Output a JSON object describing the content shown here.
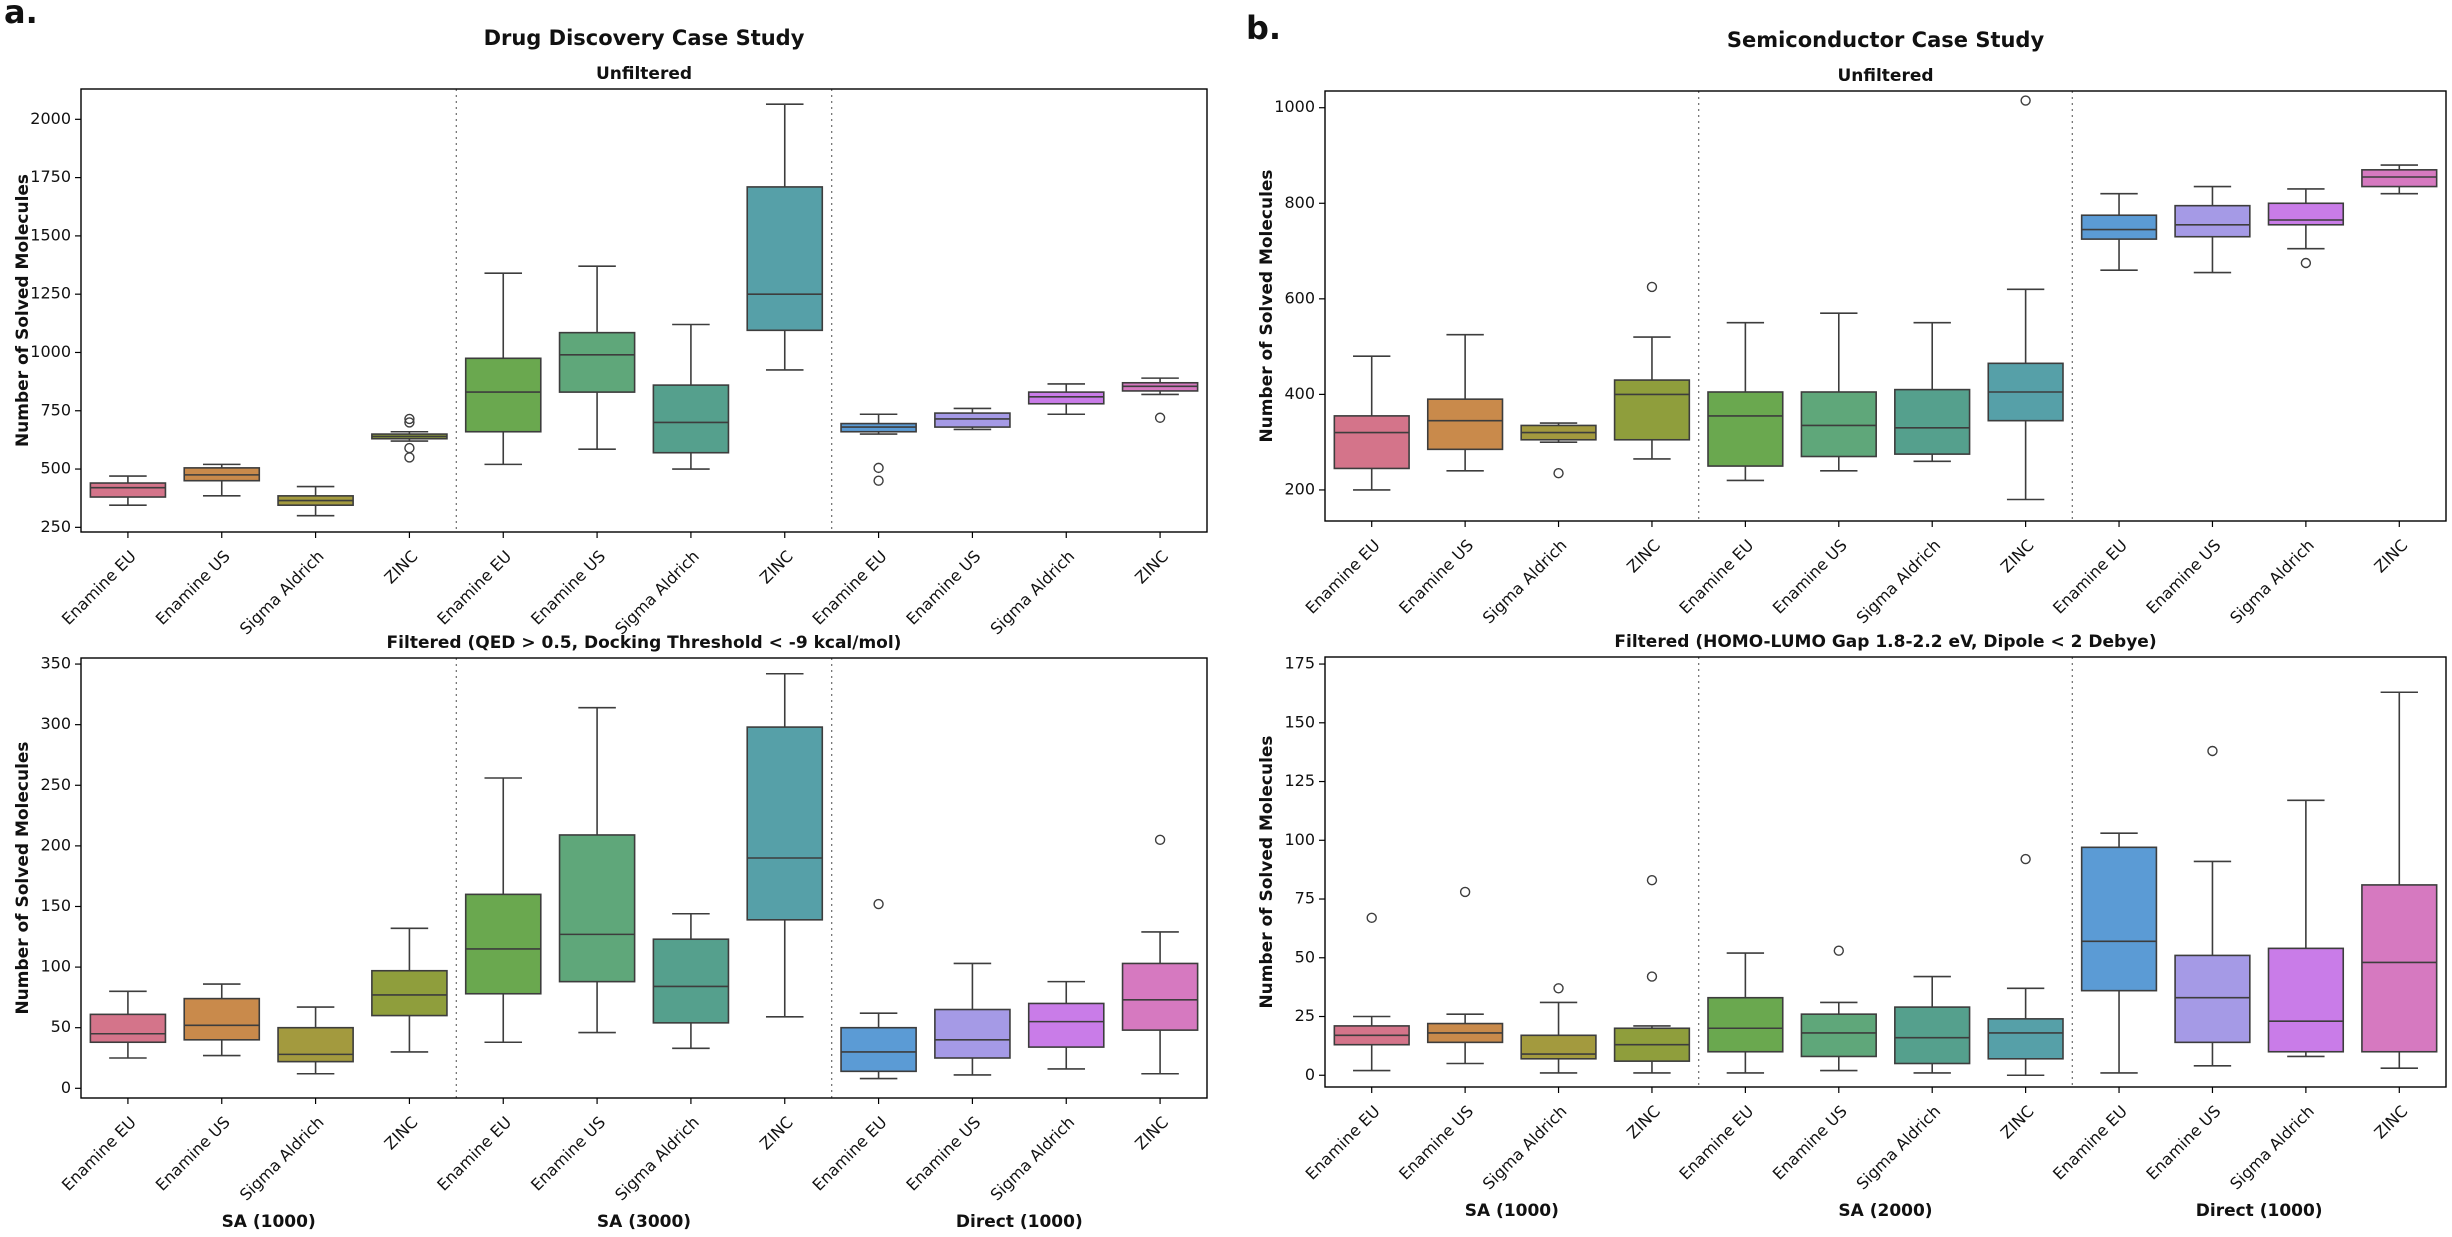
{
  "chart_data": [
    {
      "type": "box",
      "panel_label": "a.",
      "title": "Drug Discovery Case Study",
      "subtitle": "Unfiltered",
      "ylabel": "Number of Solved Molecules",
      "categories": [
        "Enamine EU",
        "Enamine US",
        "Sigma Aldrich",
        "ZINC",
        "Enamine EU",
        "Enamine US",
        "Sigma Aldrich",
        "ZINC",
        "Enamine EU",
        "Enamine US",
        "Sigma Aldrich",
        "ZINC"
      ],
      "ylim": [
        230,
        2130
      ],
      "yticks": [
        250,
        500,
        750,
        1000,
        1250,
        1500,
        1750,
        2000
      ],
      "boxes": [
        {
          "color": "#d4748a",
          "whislo": 345,
          "q1": 380,
          "med": 420,
          "q3": 440,
          "whishi": 470
        },
        {
          "color": "#c98a4b",
          "whislo": 385,
          "q1": 450,
          "med": 475,
          "q3": 505,
          "whishi": 520
        },
        {
          "color": "#a39a3e",
          "whislo": 300,
          "q1": 345,
          "med": 365,
          "q3": 385,
          "whishi": 425
        },
        {
          "color": "#8f9e3c",
          "whislo": 620,
          "q1": 630,
          "med": 640,
          "q3": 650,
          "whishi": 660,
          "fliers": [
            715,
            700,
            590,
            550
          ]
        },
        {
          "color": "#6aa84f",
          "whislo": 520,
          "q1": 660,
          "med": 830,
          "q3": 975,
          "whishi": 1340
        },
        {
          "color": "#5fa77a",
          "whislo": 585,
          "q1": 830,
          "med": 990,
          "q3": 1085,
          "whishi": 1370
        },
        {
          "color": "#55a08d",
          "whislo": 500,
          "q1": 570,
          "med": 700,
          "q3": 860,
          "whishi": 1120
        },
        {
          "color": "#56a0a8",
          "whislo": 925,
          "q1": 1095,
          "med": 1250,
          "q3": 1710,
          "whishi": 2065
        },
        {
          "color": "#5b9bd5",
          "whislo": 650,
          "q1": 660,
          "med": 680,
          "q3": 695,
          "whishi": 735,
          "fliers": [
            505,
            450
          ]
        },
        {
          "color": "#a59ae6",
          "whislo": 670,
          "q1": 680,
          "med": 715,
          "q3": 740,
          "whishi": 760
        },
        {
          "color": "#c97ce8",
          "whislo": 735,
          "q1": 780,
          "med": 810,
          "q3": 830,
          "whishi": 865
        },
        {
          "color": "#d679c0",
          "whislo": 820,
          "q1": 835,
          "med": 855,
          "q3": 870,
          "whishi": 890,
          "fliers": [
            720
          ]
        }
      ]
    },
    {
      "type": "box",
      "subtitle": "Filtered (QED > 0.5, Docking Threshold < -9 kcal/mol)",
      "ylabel": "Number of Solved Molecules",
      "categories": [
        "Enamine EU",
        "Enamine US",
        "Sigma Aldrich",
        "ZINC",
        "Enamine EU",
        "Enamine US",
        "Sigma Aldrich",
        "ZINC",
        "Enamine EU",
        "Enamine US",
        "Sigma Aldrich",
        "ZINC"
      ],
      "group_labels": [
        "SA (1000)",
        "SA (3000)",
        "Direct (1000)"
      ],
      "ylim": [
        -8,
        355
      ],
      "yticks": [
        0,
        50,
        100,
        150,
        200,
        250,
        300,
        350
      ],
      "boxes": [
        {
          "color": "#d4748a",
          "whislo": 25,
          "q1": 38,
          "med": 45,
          "q3": 61,
          "whishi": 80
        },
        {
          "color": "#c98a4b",
          "whislo": 27,
          "q1": 40,
          "med": 52,
          "q3": 74,
          "whishi": 86
        },
        {
          "color": "#a39a3e",
          "whislo": 12,
          "q1": 22,
          "med": 28,
          "q3": 50,
          "whishi": 67
        },
        {
          "color": "#8f9e3c",
          "whislo": 30,
          "q1": 60,
          "med": 77,
          "q3": 97,
          "whishi": 132
        },
        {
          "color": "#6aa84f",
          "whislo": 38,
          "q1": 78,
          "med": 115,
          "q3": 160,
          "whishi": 256
        },
        {
          "color": "#5fa77a",
          "whislo": 46,
          "q1": 88,
          "med": 127,
          "q3": 209,
          "whishi": 314
        },
        {
          "color": "#55a08d",
          "whislo": 33,
          "q1": 54,
          "med": 84,
          "q3": 123,
          "whishi": 144
        },
        {
          "color": "#56a0a8",
          "whislo": 59,
          "q1": 139,
          "med": 190,
          "q3": 298,
          "whishi": 342
        },
        {
          "color": "#5b9bd5",
          "whislo": 8,
          "q1": 14,
          "med": 30,
          "q3": 50,
          "whishi": 62,
          "fliers": [
            152
          ]
        },
        {
          "color": "#a59ae6",
          "whislo": 11,
          "q1": 25,
          "med": 40,
          "q3": 65,
          "whishi": 103
        },
        {
          "color": "#c97ce8",
          "whislo": 16,
          "q1": 34,
          "med": 55,
          "q3": 70,
          "whishi": 88
        },
        {
          "color": "#d679c0",
          "whislo": 12,
          "q1": 48,
          "med": 73,
          "q3": 103,
          "whishi": 129,
          "fliers": [
            205
          ]
        }
      ]
    },
    {
      "type": "box",
      "panel_label": "b.",
      "title": "Semiconductor Case Study",
      "subtitle": "Unfiltered",
      "ylabel": "Number of Solved Molecules",
      "categories": [
        "Enamine EU",
        "Enamine US",
        "Sigma Aldrich",
        "ZINC",
        "Enamine EU",
        "Enamine US",
        "Sigma Aldrich",
        "ZINC",
        "Enamine EU",
        "Enamine US",
        "Sigma Aldrich",
        "ZINC"
      ],
      "ylim": [
        135,
        1035
      ],
      "yticks": [
        200,
        400,
        600,
        800,
        1000
      ],
      "boxes": [
        {
          "color": "#d4748a",
          "whislo": 200,
          "q1": 245,
          "med": 320,
          "q3": 355,
          "whishi": 480
        },
        {
          "color": "#c98a4b",
          "whislo": 240,
          "q1": 285,
          "med": 345,
          "q3": 390,
          "whishi": 525
        },
        {
          "color": "#a39a3e",
          "whislo": 300,
          "q1": 305,
          "med": 320,
          "q3": 335,
          "whishi": 340,
          "fliers": [
            235
          ]
        },
        {
          "color": "#8f9e3c",
          "whislo": 265,
          "q1": 305,
          "med": 400,
          "q3": 430,
          "whishi": 520,
          "fliers": [
            625
          ]
        },
        {
          "color": "#6aa84f",
          "whislo": 220,
          "q1": 250,
          "med": 355,
          "q3": 405,
          "whishi": 550
        },
        {
          "color": "#5fa77a",
          "whislo": 240,
          "q1": 270,
          "med": 335,
          "q3": 405,
          "whishi": 570
        },
        {
          "color": "#55a08d",
          "whislo": 260,
          "q1": 275,
          "med": 330,
          "q3": 410,
          "whishi": 550
        },
        {
          "color": "#56a0a8",
          "whislo": 180,
          "q1": 345,
          "med": 405,
          "q3": 465,
          "whishi": 620,
          "fliers": [
            1015
          ]
        },
        {
          "color": "#5b9bd5",
          "whislo": 660,
          "q1": 725,
          "med": 745,
          "q3": 775,
          "whishi": 820
        },
        {
          "color": "#a59ae6",
          "whislo": 655,
          "q1": 730,
          "med": 755,
          "q3": 795,
          "whishi": 835
        },
        {
          "color": "#c97ce8",
          "whislo": 705,
          "q1": 755,
          "med": 765,
          "q3": 800,
          "whishi": 830,
          "fliers": [
            675
          ]
        },
        {
          "color": "#d679c0",
          "whislo": 820,
          "q1": 835,
          "med": 855,
          "q3": 870,
          "whishi": 880
        }
      ]
    },
    {
      "type": "box",
      "subtitle": "Filtered (HOMO-LUMO Gap 1.8-2.2 eV, Dipole < 2 Debye)",
      "ylabel": "Number of Solved Molecules",
      "categories": [
        "Enamine EU",
        "Enamine US",
        "Sigma Aldrich",
        "ZINC",
        "Enamine EU",
        "Enamine US",
        "Sigma Aldrich",
        "ZINC",
        "Enamine EU",
        "Enamine US",
        "Sigma Aldrich",
        "ZINC"
      ],
      "group_labels": [
        "SA (1000)",
        "SA (2000)",
        "Direct (1000)"
      ],
      "ylim": [
        -5,
        178
      ],
      "yticks": [
        0,
        25,
        50,
        75,
        100,
        125,
        150,
        175
      ],
      "boxes": [
        {
          "color": "#d4748a",
          "whislo": 2,
          "q1": 13,
          "med": 17,
          "q3": 21,
          "whishi": 25,
          "fliers": [
            67
          ]
        },
        {
          "color": "#c98a4b",
          "whislo": 5,
          "q1": 14,
          "med": 18,
          "q3": 22,
          "whishi": 26,
          "fliers": [
            78
          ]
        },
        {
          "color": "#a39a3e",
          "whislo": 1,
          "q1": 7,
          "med": 9,
          "q3": 17,
          "whishi": 31,
          "fliers": [
            37
          ]
        },
        {
          "color": "#8f9e3c",
          "whislo": 1,
          "q1": 6,
          "med": 13,
          "q3": 20,
          "whishi": 21,
          "fliers": [
            83,
            42
          ]
        },
        {
          "color": "#6aa84f",
          "whislo": 1,
          "q1": 10,
          "med": 20,
          "q3": 33,
          "whishi": 52
        },
        {
          "color": "#5fa77a",
          "whislo": 2,
          "q1": 8,
          "med": 18,
          "q3": 26,
          "whishi": 31,
          "fliers": [
            53
          ]
        },
        {
          "color": "#55a08d",
          "whislo": 1,
          "q1": 5,
          "med": 16,
          "q3": 29,
          "whishi": 42
        },
        {
          "color": "#56a0a8",
          "whislo": 0,
          "q1": 7,
          "med": 18,
          "q3": 24,
          "whishi": 37,
          "fliers": [
            92
          ]
        },
        {
          "color": "#5b9bd5",
          "whislo": 1,
          "q1": 36,
          "med": 57,
          "q3": 97,
          "whishi": 103
        },
        {
          "color": "#a59ae6",
          "whislo": 4,
          "q1": 14,
          "med": 33,
          "q3": 51,
          "whishi": 91,
          "fliers": [
            138
          ]
        },
        {
          "color": "#c97ce8",
          "whislo": 8,
          "q1": 10,
          "med": 23,
          "q3": 54,
          "whishi": 117
        },
        {
          "color": "#d679c0",
          "whislo": 3,
          "q1": 10,
          "med": 48,
          "q3": 81,
          "whishi": 163
        }
      ]
    }
  ]
}
